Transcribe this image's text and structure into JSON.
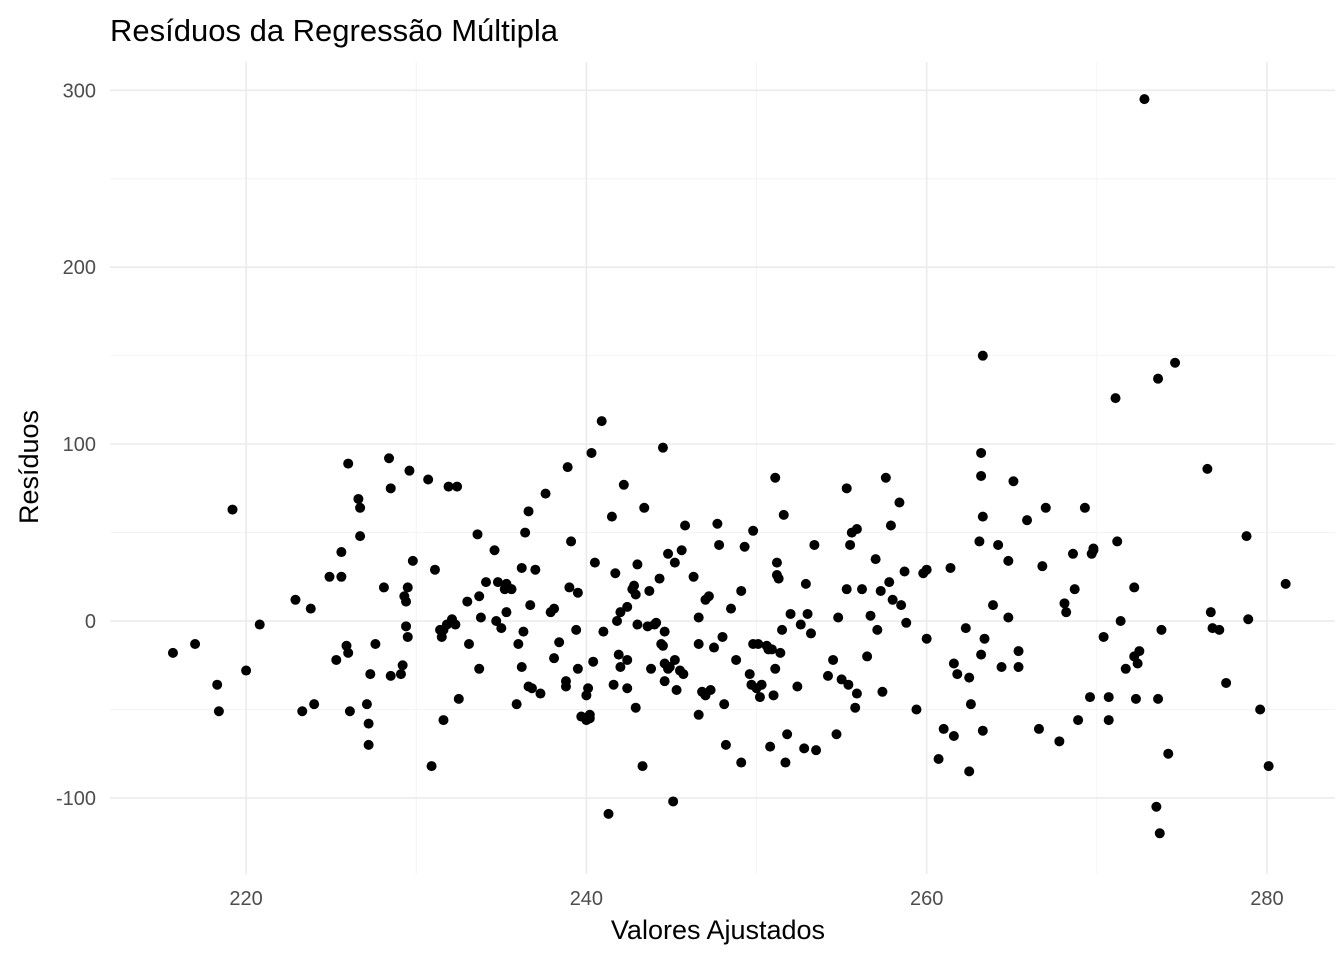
{
  "chart_data": {
    "type": "scatter",
    "title": "Resíduos da Regressão Múltipla",
    "xlabel": "Valores Ajustados",
    "ylabel": "Resíduos",
    "xlim": [
      212,
      284
    ],
    "ylim": [
      -143,
      316
    ],
    "x_ticks": [
      220,
      240,
      260,
      280
    ],
    "x_tick_labels": [
      "220",
      "240",
      "260",
      "280"
    ],
    "y_ticks": [
      -100,
      0,
      100,
      200,
      300
    ],
    "y_tick_labels": [
      "-100",
      "0",
      "100",
      "200",
      "300"
    ],
    "grid": true,
    "legend": "none",
    "point_color": "#000000",
    "points": [
      [
        215.7,
        -18
      ],
      [
        217.0,
        -13
      ],
      [
        218.3,
        -36
      ],
      [
        218.4,
        -51
      ],
      [
        219.2,
        63
      ],
      [
        220.0,
        -28
      ],
      [
        220.8,
        -2
      ],
      [
        222.9,
        12
      ],
      [
        223.3,
        -51
      ],
      [
        223.8,
        7
      ],
      [
        224.0,
        -47
      ],
      [
        224.9,
        25
      ],
      [
        225.3,
        -22
      ],
      [
        225.6,
        39
      ],
      [
        225.6,
        25
      ],
      [
        225.9,
        -14
      ],
      [
        226.0,
        -18
      ],
      [
        226.0,
        89
      ],
      [
        226.1,
        -51
      ],
      [
        226.6,
        69
      ],
      [
        226.7,
        64
      ],
      [
        226.7,
        48
      ],
      [
        227.1,
        -47
      ],
      [
        227.2,
        -58
      ],
      [
        227.2,
        -70
      ],
      [
        227.3,
        -30
      ],
      [
        227.6,
        -13
      ],
      [
        228.1,
        19
      ],
      [
        228.4,
        92
      ],
      [
        228.5,
        -31
      ],
      [
        228.5,
        75
      ],
      [
        229.1,
        -30
      ],
      [
        229.2,
        -25
      ],
      [
        229.3,
        14
      ],
      [
        229.4,
        11
      ],
      [
        229.4,
        -3
      ],
      [
        229.5,
        19
      ],
      [
        229.5,
        -9
      ],
      [
        229.6,
        85
      ],
      [
        229.8,
        34
      ],
      [
        230.7,
        80
      ],
      [
        230.9,
        -82
      ],
      [
        231.1,
        29
      ],
      [
        231.4,
        -5
      ],
      [
        231.5,
        -9
      ],
      [
        231.6,
        -56
      ],
      [
        231.6,
        -5
      ],
      [
        231.8,
        -2
      ],
      [
        231.9,
        76
      ],
      [
        232.1,
        1
      ],
      [
        232.3,
        -2
      ],
      [
        232.4,
        76
      ],
      [
        232.5,
        -44
      ],
      [
        233.0,
        11
      ],
      [
        233.1,
        -13
      ],
      [
        233.6,
        49
      ],
      [
        233.7,
        -27
      ],
      [
        233.7,
        14
      ],
      [
        233.8,
        2
      ],
      [
        234.1,
        22
      ],
      [
        234.6,
        40
      ],
      [
        234.7,
        0
      ],
      [
        234.8,
        22
      ],
      [
        235.0,
        -4
      ],
      [
        235.2,
        18
      ],
      [
        235.3,
        21
      ],
      [
        235.3,
        5
      ],
      [
        235.6,
        18
      ],
      [
        235.9,
        -47
      ],
      [
        236.0,
        -13
      ],
      [
        236.2,
        -26
      ],
      [
        236.2,
        30
      ],
      [
        236.3,
        -6
      ],
      [
        236.4,
        50
      ],
      [
        236.6,
        -37
      ],
      [
        236.6,
        62
      ],
      [
        236.7,
        9
      ],
      [
        236.8,
        -38
      ],
      [
        237.0,
        29
      ],
      [
        237.3,
        -41
      ],
      [
        237.6,
        72
      ],
      [
        237.9,
        5
      ],
      [
        238.1,
        -21
      ],
      [
        238.1,
        7
      ],
      [
        238.4,
        -12
      ],
      [
        238.8,
        -37
      ],
      [
        238.8,
        -34
      ],
      [
        238.9,
        87
      ],
      [
        239.0,
        19
      ],
      [
        239.1,
        45
      ],
      [
        239.4,
        -5
      ],
      [
        239.5,
        -27
      ],
      [
        239.5,
        16
      ],
      [
        239.7,
        -54
      ],
      [
        240.0,
        -42
      ],
      [
        240.0,
        -56
      ],
      [
        240.1,
        -38
      ],
      [
        240.2,
        -55
      ],
      [
        240.2,
        -53
      ],
      [
        240.3,
        95
      ],
      [
        240.4,
        -23
      ],
      [
        240.5,
        33
      ],
      [
        240.9,
        113
      ],
      [
        241.0,
        -6
      ],
      [
        241.3,
        -109
      ],
      [
        241.5,
        59
      ],
      [
        241.6,
        -36
      ],
      [
        241.7,
        27
      ],
      [
        241.8,
        0
      ],
      [
        241.9,
        -19
      ],
      [
        242.0,
        5
      ],
      [
        242.0,
        -26
      ],
      [
        242.2,
        77
      ],
      [
        242.4,
        -38
      ],
      [
        242.4,
        -22
      ],
      [
        242.4,
        8
      ],
      [
        242.7,
        18
      ],
      [
        242.8,
        20
      ],
      [
        242.9,
        -49
      ],
      [
        242.9,
        15
      ],
      [
        243.0,
        -2
      ],
      [
        243.0,
        32
      ],
      [
        243.3,
        -82
      ],
      [
        243.4,
        64
      ],
      [
        243.6,
        -3
      ],
      [
        243.7,
        17
      ],
      [
        243.8,
        -27
      ],
      [
        244.0,
        -2
      ],
      [
        244.1,
        -1
      ],
      [
        244.3,
        24
      ],
      [
        244.4,
        -13
      ],
      [
        244.5,
        98
      ],
      [
        244.5,
        -14
      ],
      [
        244.6,
        -34
      ],
      [
        244.6,
        -24
      ],
      [
        244.6,
        -6
      ],
      [
        244.8,
        38
      ],
      [
        244.8,
        -27
      ],
      [
        244.9,
        -26
      ],
      [
        245.1,
        -102
      ],
      [
        245.2,
        -22
      ],
      [
        245.2,
        33
      ],
      [
        245.3,
        -39
      ],
      [
        245.5,
        -28
      ],
      [
        245.6,
        40
      ],
      [
        245.7,
        -30
      ],
      [
        245.8,
        54
      ],
      [
        246.3,
        25
      ],
      [
        246.6,
        -13
      ],
      [
        246.6,
        -53
      ],
      [
        246.6,
        2
      ],
      [
        246.8,
        -40
      ],
      [
        247.0,
        -42
      ],
      [
        247.0,
        12
      ],
      [
        247.2,
        14
      ],
      [
        247.3,
        -39
      ],
      [
        247.5,
        -15
      ],
      [
        247.7,
        55
      ],
      [
        247.8,
        43
      ],
      [
        248.0,
        -9
      ],
      [
        248.1,
        -47
      ],
      [
        248.2,
        -70
      ],
      [
        248.5,
        7
      ],
      [
        248.8,
        -22
      ],
      [
        249.1,
        -80
      ],
      [
        249.1,
        17
      ],
      [
        249.3,
        42
      ],
      [
        249.6,
        -30
      ],
      [
        249.7,
        -36
      ],
      [
        249.8,
        51
      ],
      [
        249.8,
        -13
      ],
      [
        250.0,
        -38
      ],
      [
        250.1,
        -13
      ],
      [
        250.2,
        -43
      ],
      [
        250.3,
        -36
      ],
      [
        250.6,
        -14
      ],
      [
        250.7,
        -16
      ],
      [
        250.8,
        -71
      ],
      [
        250.9,
        -16
      ],
      [
        251.0,
        -42
      ],
      [
        251.1,
        81
      ],
      [
        251.1,
        -27
      ],
      [
        251.2,
        33
      ],
      [
        251.2,
        26
      ],
      [
        251.3,
        24
      ],
      [
        251.4,
        -18
      ],
      [
        251.5,
        -5
      ],
      [
        251.6,
        60
      ],
      [
        251.7,
        -80
      ],
      [
        251.8,
        -64
      ],
      [
        252.0,
        4
      ],
      [
        252.4,
        -37
      ],
      [
        252.6,
        -2
      ],
      [
        252.8,
        -72
      ],
      [
        252.9,
        21
      ],
      [
        253.0,
        4
      ],
      [
        253.2,
        -7
      ],
      [
        253.4,
        43
      ],
      [
        253.5,
        -73
      ],
      [
        254.2,
        -31
      ],
      [
        254.5,
        -22
      ],
      [
        254.7,
        -64
      ],
      [
        254.8,
        2
      ],
      [
        255.0,
        -33
      ],
      [
        255.3,
        75
      ],
      [
        255.3,
        18
      ],
      [
        255.4,
        -36
      ],
      [
        255.5,
        43
      ],
      [
        255.6,
        50
      ],
      [
        255.8,
        -49
      ],
      [
        255.9,
        52
      ],
      [
        255.9,
        -41
      ],
      [
        256.2,
        18
      ],
      [
        256.5,
        -20
      ],
      [
        256.7,
        3
      ],
      [
        257.0,
        35
      ],
      [
        257.1,
        -5
      ],
      [
        257.3,
        17
      ],
      [
        257.4,
        -40
      ],
      [
        257.6,
        81
      ],
      [
        257.8,
        22
      ],
      [
        257.9,
        54
      ],
      [
        258.0,
        12
      ],
      [
        258.4,
        67
      ],
      [
        258.5,
        9
      ],
      [
        258.7,
        28
      ],
      [
        258.8,
        -1
      ],
      [
        259.4,
        -50
      ],
      [
        259.8,
        27
      ],
      [
        260.0,
        29
      ],
      [
        260.0,
        -10
      ],
      [
        260.7,
        -78
      ],
      [
        261.0,
        -61
      ],
      [
        261.4,
        30
      ],
      [
        261.6,
        -65
      ],
      [
        261.6,
        -24
      ],
      [
        261.8,
        -30
      ],
      [
        262.3,
        -4
      ],
      [
        262.5,
        -85
      ],
      [
        262.5,
        -32
      ],
      [
        262.6,
        -47
      ],
      [
        263.1,
        45
      ],
      [
        263.2,
        -19
      ],
      [
        263.2,
        95
      ],
      [
        263.2,
        82
      ],
      [
        263.3,
        59
      ],
      [
        263.3,
        -62
      ],
      [
        263.3,
        150
      ],
      [
        263.4,
        -10
      ],
      [
        263.9,
        9
      ],
      [
        264.2,
        43
      ],
      [
        264.4,
        -26
      ],
      [
        264.8,
        34
      ],
      [
        264.8,
        2
      ],
      [
        265.1,
        79
      ],
      [
        265.4,
        -26
      ],
      [
        265.4,
        -17
      ],
      [
        265.9,
        57
      ],
      [
        266.6,
        -61
      ],
      [
        266.8,
        31
      ],
      [
        267.0,
        64
      ],
      [
        267.8,
        -68
      ],
      [
        268.1,
        10
      ],
      [
        268.2,
        5
      ],
      [
        268.6,
        38
      ],
      [
        268.7,
        18
      ],
      [
        268.9,
        -56
      ],
      [
        269.3,
        64
      ],
      [
        269.6,
        -43
      ],
      [
        269.7,
        38
      ],
      [
        269.8,
        40
      ],
      [
        269.8,
        41
      ],
      [
        270.4,
        -9
      ],
      [
        270.7,
        -56
      ],
      [
        270.7,
        -43
      ],
      [
        271.1,
        126
      ],
      [
        271.2,
        45
      ],
      [
        271.4,
        0
      ],
      [
        271.7,
        -27
      ],
      [
        272.2,
        -20
      ],
      [
        272.2,
        19
      ],
      [
        272.3,
        -44
      ],
      [
        272.4,
        -24
      ],
      [
        272.5,
        -17
      ],
      [
        272.8,
        295
      ],
      [
        273.5,
        -105
      ],
      [
        273.6,
        137
      ],
      [
        273.6,
        -44
      ],
      [
        273.7,
        -120
      ],
      [
        273.8,
        -5
      ],
      [
        274.2,
        -75
      ],
      [
        274.6,
        146
      ],
      [
        276.5,
        86
      ],
      [
        276.7,
        5
      ],
      [
        276.8,
        -4
      ],
      [
        277.2,
        -5
      ],
      [
        277.6,
        -35
      ],
      [
        278.8,
        48
      ],
      [
        278.9,
        1
      ],
      [
        279.6,
        -50
      ],
      [
        280.1,
        -82
      ],
      [
        281.1,
        21
      ]
    ]
  }
}
